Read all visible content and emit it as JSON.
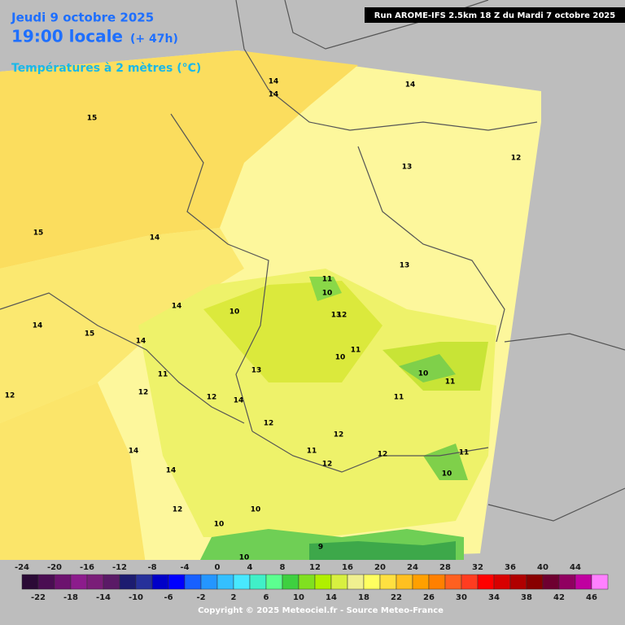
{
  "header": {
    "date": "Jeudi 9 octobre 2025",
    "time": "19:00 locale",
    "lead": "(+ 47h)",
    "parameter": "Températures à 2 mètres (°C)",
    "run": "Run AROME-IFS 2.5km 18 Z du Mardi 7 octobre 2025"
  },
  "contour_labels": [
    14,
    14,
    14,
    15,
    15,
    14,
    13,
    12,
    13,
    13,
    11,
    10,
    12,
    10,
    11,
    11,
    10,
    10,
    11,
    12,
    14,
    14,
    13,
    12,
    12,
    14,
    15,
    14,
    12,
    14,
    14,
    10,
    10,
    11,
    11,
    9,
    10,
    10,
    11,
    12,
    12,
    12,
    12
  ],
  "legend": {
    "ticks": [
      -24,
      -22,
      -20,
      -18,
      -16,
      -14,
      -12,
      -10,
      -8,
      -6,
      -4,
      -2,
      0,
      2,
      4,
      6,
      8,
      10,
      12,
      14,
      16,
      18,
      20,
      22,
      24,
      26,
      28,
      30,
      32,
      34,
      36,
      38,
      40,
      42,
      44,
      46
    ],
    "colors": [
      "#2b0a36",
      "#4a0d52",
      "#6c126e",
      "#8c1c8c",
      "#7a1e78",
      "#5a1a66",
      "#1c1c70",
      "#26309a",
      "#0000c8",
      "#0000ff",
      "#1760ff",
      "#2496ff",
      "#34c0ff",
      "#48e8ff",
      "#40f0c8",
      "#5cff90",
      "#3ed040",
      "#80e020",
      "#b0f000",
      "#d8f040",
      "#f0f090",
      "#ffff60",
      "#ffe040",
      "#ffc020",
      "#ffa000",
      "#ff8000",
      "#ff6020",
      "#ff3c20",
      "#ff0000",
      "#d80000",
      "#b00000",
      "#880000",
      "#6e0030",
      "#900060",
      "#c000a0",
      "#ff80ff"
    ]
  },
  "copyright": "Copyright © 2025 Meteociel.fr - Source Meteo-France"
}
